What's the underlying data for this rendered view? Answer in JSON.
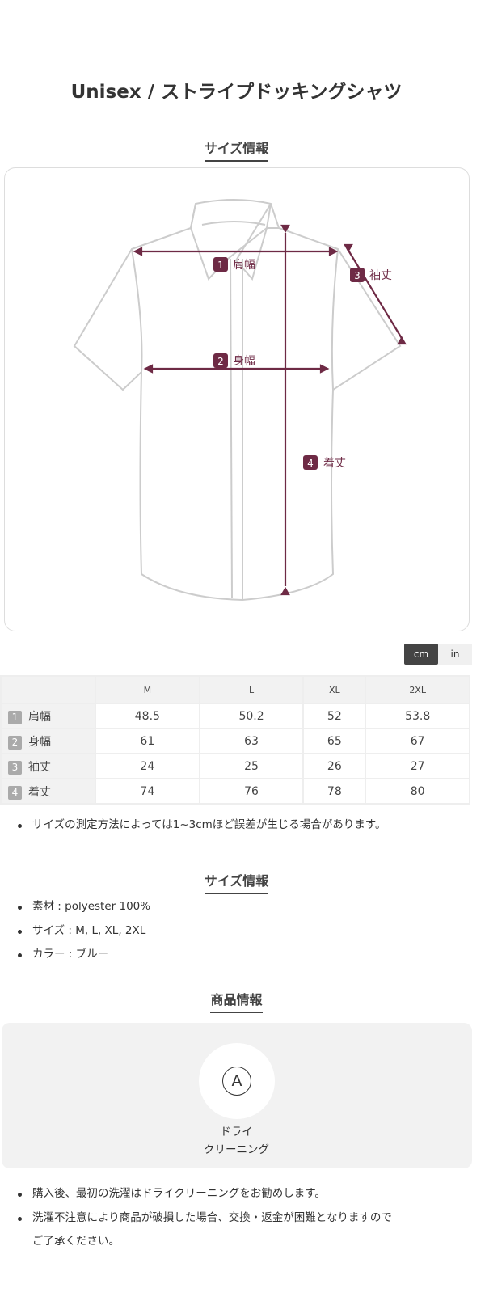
{
  "product_title": "Unisex / ストライプドッキングシャツ",
  "size_section_title": "サイズ情報",
  "diagram": {
    "accent": "#6e2a45",
    "labels": [
      {
        "num": "1",
        "text": "肩幅"
      },
      {
        "num": "2",
        "text": "身幅"
      },
      {
        "num": "3",
        "text": "袖丈"
      },
      {
        "num": "4",
        "text": "着丈"
      }
    ]
  },
  "unit_toggle": {
    "selected": "cm",
    "options": [
      "cm",
      "in"
    ]
  },
  "table": {
    "columns": [
      "M",
      "L",
      "XL",
      "2XL"
    ],
    "rows": [
      {
        "num": "1",
        "label": "肩幅",
        "values": [
          "48.5",
          "50.2",
          "52",
          "53.8"
        ]
      },
      {
        "num": "2",
        "label": "身幅",
        "values": [
          "61",
          "63",
          "65",
          "67"
        ]
      },
      {
        "num": "3",
        "label": "袖丈",
        "values": [
          "24",
          "25",
          "26",
          "27"
        ]
      },
      {
        "num": "4",
        "label": "着丈",
        "values": [
          "74",
          "76",
          "78",
          "80"
        ]
      }
    ]
  },
  "size_note": "サイズの測定方法によっては1~3cmほど誤差が生じる場合があります。",
  "spec_section_title": "サイズ情報",
  "specs": [
    "素材 : polyester 100%",
    "サイズ : M, L, XL, 2XL",
    "カラー : ブルー"
  ],
  "product_section_title": "商品情報",
  "care": {
    "icon": "dry-clean-A-icon",
    "symbol": "A",
    "label_line1": "ドライ",
    "label_line2": "クリーニング"
  },
  "care_notes": [
    "購入後、最初の洗濯はドライクリーニングをお勧めします。",
    "洗濯不注意により商品が破損した場合、交換・返金が困難となりますので",
    "ご了承ください。"
  ]
}
